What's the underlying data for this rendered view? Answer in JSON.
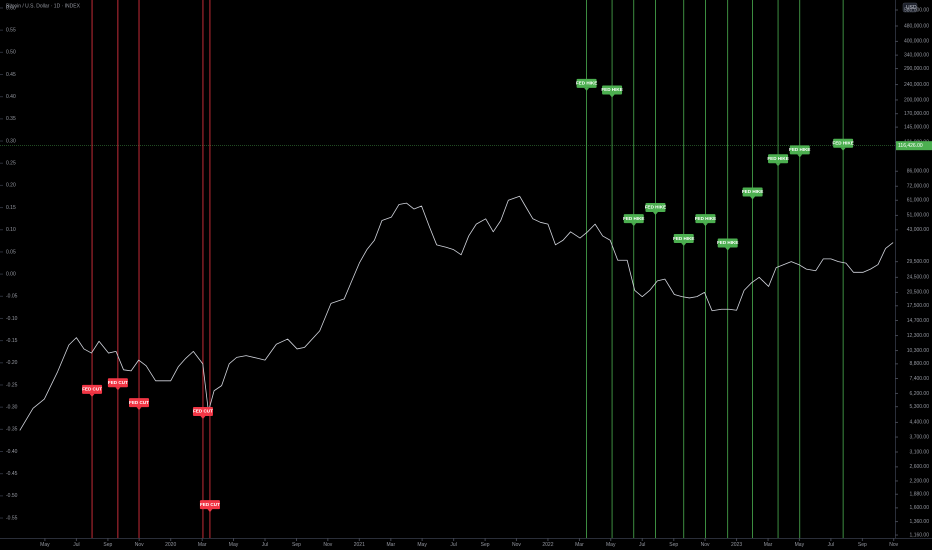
{
  "chart_data": {
    "type": "line",
    "title": "Bitcoin / U.S. Dollar · 1D · INDEX",
    "currency": "USD",
    "background": "#000000",
    "grid": false,
    "xlim": [
      2019.095,
      2023.84
    ],
    "xticks": [
      {
        "value": 2019.333,
        "label": "May"
      },
      {
        "value": 2019.5,
        "label": "Jul"
      },
      {
        "value": 2019.667,
        "label": "Sep"
      },
      {
        "value": 2019.833,
        "label": "Nov"
      },
      {
        "value": 2020,
        "label": "2020"
      },
      {
        "value": 2020.167,
        "label": "Mar"
      },
      {
        "value": 2020.333,
        "label": "May"
      },
      {
        "value": 2020.5,
        "label": "Jul"
      },
      {
        "value": 2020.667,
        "label": "Sep"
      },
      {
        "value": 2020.833,
        "label": "Nov"
      },
      {
        "value": 2021,
        "label": "2021"
      },
      {
        "value": 2021.167,
        "label": "Mar"
      },
      {
        "value": 2021.333,
        "label": "May"
      },
      {
        "value": 2021.5,
        "label": "Jul"
      },
      {
        "value": 2021.667,
        "label": "Sep"
      },
      {
        "value": 2021.833,
        "label": "Nov"
      },
      {
        "value": 2022,
        "label": "2022"
      },
      {
        "value": 2022.167,
        "label": "Mar"
      },
      {
        "value": 2022.333,
        "label": "May"
      },
      {
        "value": 2022.5,
        "label": "Jul"
      },
      {
        "value": 2022.667,
        "label": "Sep"
      },
      {
        "value": 2022.833,
        "label": "Nov"
      },
      {
        "value": 2023,
        "label": "2023"
      },
      {
        "value": 2023.167,
        "label": "Mar"
      },
      {
        "value": 2023.333,
        "label": "May"
      },
      {
        "value": 2023.5,
        "label": "Jul"
      },
      {
        "value": 2023.667,
        "label": "Sep"
      },
      {
        "value": 2023.833,
        "label": "Nov"
      }
    ],
    "ylim": [
      -0.595,
      0.618
    ],
    "yticks": [
      {
        "value": 0.6,
        "label": "0.60"
      },
      0.55,
      {
        "value": 0.5,
        "label": "0.50"
      },
      0.45,
      {
        "value": 0.4,
        "label": "0.40"
      },
      0.35,
      {
        "value": 0.3,
        "label": "0.30"
      },
      0.25,
      {
        "value": 0.2,
        "label": "0.20"
      },
      0.15,
      {
        "value": 0.1,
        "label": "0.10"
      },
      0.05,
      {
        "value": 0,
        "label": "0.00"
      },
      -0.05,
      {
        "value": -0.1,
        "label": "-0.10"
      },
      -0.15,
      {
        "value": -0.2,
        "label": "-0.20"
      },
      -0.25,
      {
        "value": -0.3,
        "label": "-0.30"
      },
      -0.35,
      {
        "value": -0.4,
        "label": "-0.40"
      },
      -0.45,
      {
        "value": -0.5,
        "label": "-0.50"
      },
      -0.55
    ],
    "y2log": true,
    "y2lim": [
      1120,
      653000
    ],
    "y2ticks": [
      {
        "value": 580000,
        "label": "580,000.00"
      },
      {
        "value": 480000,
        "label": "480,000.00"
      },
      {
        "value": 400000,
        "label": "400,000.00"
      },
      {
        "value": 340000,
        "label": "340,000.00"
      },
      {
        "value": 290000,
        "label": "290,000.00"
      },
      {
        "value": 240000,
        "label": "240,000.00"
      },
      {
        "value": 200000,
        "label": "200,000.00"
      },
      {
        "value": 170000,
        "label": "170,000.00"
      },
      {
        "value": 145000,
        "label": "145,000.00"
      },
      {
        "value": 121000,
        "label": "121,000.00"
      },
      {
        "value": 86000,
        "label": "86,000.00"
      },
      {
        "value": 72000,
        "label": "72,000.00"
      },
      {
        "value": 61000,
        "label": "61,000.00"
      },
      {
        "value": 51000,
        "label": "51,000.00"
      },
      {
        "value": 43000,
        "label": "43,000.00"
      },
      {
        "value": 29500,
        "label": "29,500.00"
      },
      {
        "value": 24500,
        "label": "24,500.00"
      },
      {
        "value": 20500,
        "label": "20,500.00"
      },
      {
        "value": 17500,
        "label": "17,500.00"
      },
      {
        "value": 14700,
        "label": "14,700.00"
      },
      {
        "value": 12300,
        "label": "12,300.00"
      },
      {
        "value": 10300,
        "label": "10,300.00"
      },
      {
        "value": 8800,
        "label": "8,800.00"
      },
      {
        "value": 7400,
        "label": "7,400.00"
      },
      {
        "value": 6200,
        "label": "6,200.00"
      },
      {
        "value": 5300,
        "label": "5,300.00"
      },
      {
        "value": 4400,
        "label": "4,400.00"
      },
      {
        "value": 3700,
        "label": "3,700.00"
      },
      {
        "value": 3100,
        "label": "3,100.00"
      },
      {
        "value": 2600,
        "label": "2,600.00"
      },
      {
        "value": 2200,
        "label": "2,200.00"
      },
      {
        "value": 1880,
        "label": "1,880.00"
      },
      {
        "value": 1600,
        "label": "1,600.00"
      },
      {
        "value": 1360,
        "label": "1,360.00"
      },
      {
        "value": 1160,
        "label": "1,160.00"
      }
    ],
    "last_price": {
      "value": 116426,
      "label": "116,426.00",
      "color": "#4caf50"
    },
    "series": [
      {
        "axis": "y2",
        "color": "#d1d4dc",
        "x": [
          2019.2,
          2019.27,
          2019.33,
          2019.4,
          2019.46,
          2019.5,
          2019.54,
          2019.58,
          2019.62,
          2019.67,
          2019.71,
          2019.75,
          2019.79,
          2019.83,
          2019.87,
          2019.92,
          2019.96,
          2020.0,
          2020.04,
          2020.08,
          2020.12,
          2020.17,
          2020.2,
          2020.23,
          2020.27,
          2020.31,
          2020.35,
          2020.4,
          2020.46,
          2020.5,
          2020.56,
          2020.62,
          2020.67,
          2020.71,
          2020.79,
          2020.85,
          2020.92,
          2020.96,
          2021.0,
          2021.04,
          2021.08,
          2021.12,
          2021.17,
          2021.21,
          2021.25,
          2021.29,
          2021.33,
          2021.37,
          2021.41,
          2021.46,
          2021.5,
          2021.54,
          2021.58,
          2021.62,
          2021.67,
          2021.71,
          2021.75,
          2021.79,
          2021.85,
          2021.88,
          2021.92,
          2021.96,
          2022.0,
          2022.04,
          2022.08,
          2022.12,
          2022.17,
          2022.21,
          2022.25,
          2022.29,
          2022.33,
          2022.37,
          2022.42,
          2022.46,
          2022.5,
          2022.54,
          2022.58,
          2022.62,
          2022.67,
          2022.71,
          2022.75,
          2022.79,
          2022.83,
          2022.87,
          2022.92,
          2022.96,
          2023.0,
          2023.04,
          2023.08,
          2023.12,
          2023.17,
          2023.21,
          2023.25,
          2023.29,
          2023.33,
          2023.37,
          2023.42,
          2023.46,
          2023.5,
          2023.54,
          2023.58,
          2023.62,
          2023.67,
          2023.71,
          2023.75,
          2023.79,
          2023.83
        ],
        "values": [
          4000,
          5200,
          5800,
          8000,
          11000,
          12000,
          10500,
          10000,
          11500,
          10000,
          10200,
          8200,
          8100,
          9200,
          8600,
          7200,
          7200,
          7200,
          8500,
          9400,
          10200,
          8800,
          5000,
          6400,
          6800,
          8800,
          9500,
          9700,
          9400,
          9200,
          11100,
          11800,
          10500,
          10700,
          13000,
          18000,
          19000,
          23500,
          29000,
          34000,
          38000,
          48000,
          50000,
          58000,
          59000,
          55000,
          57000,
          45000,
          36000,
          35000,
          34000,
          32000,
          40000,
          46000,
          49000,
          42000,
          48000,
          61000,
          64000,
          57000,
          49000,
          47000,
          46000,
          36000,
          38000,
          42000,
          39000,
          42000,
          46000,
          40000,
          38000,
          30000,
          30000,
          21000,
          19500,
          21000,
          23500,
          24000,
          20000,
          19500,
          19200,
          19500,
          20500,
          16500,
          16800,
          16800,
          16600,
          21000,
          23000,
          24500,
          22000,
          27500,
          28500,
          29500,
          28500,
          27000,
          26500,
          30500,
          30500,
          29500,
          29000,
          26000,
          26000,
          27000,
          28500,
          34500,
          37000
        ]
      }
    ],
    "events": [
      {
        "x": 2019.583,
        "label": "FED CUT",
        "value": -0.27,
        "color": "#f23645"
      },
      {
        "x": 2019.72,
        "label": "FED CUT",
        "value": -0.255,
        "color": "#f23645"
      },
      {
        "x": 2019.832,
        "label": "FED CUT",
        "value": -0.3,
        "color": "#f23645"
      },
      {
        "x": 2020.171,
        "label": "FED CUT",
        "value": -0.32,
        "color": "#f23645"
      },
      {
        "x": 2020.208,
        "label": "FED CUT",
        "value": -0.53,
        "color": "#f23645"
      },
      {
        "x": 2022.205,
        "label": "FED HIKE",
        "value": 0.42,
        "color": "#4caf50"
      },
      {
        "x": 2022.34,
        "label": "FED HIKE",
        "value": 0.405,
        "color": "#4caf50"
      },
      {
        "x": 2022.455,
        "label": "FED HIKE",
        "value": 0.115,
        "color": "#4caf50"
      },
      {
        "x": 2022.57,
        "label": "FED HIKE",
        "value": 0.14,
        "color": "#4caf50"
      },
      {
        "x": 2022.72,
        "label": "FED HIKE",
        "value": 0.07,
        "color": "#4caf50"
      },
      {
        "x": 2022.835,
        "label": "FED HIKE",
        "value": 0.115,
        "color": "#4caf50"
      },
      {
        "x": 2022.953,
        "label": "FED HIKE",
        "value": 0.06,
        "color": "#4caf50"
      },
      {
        "x": 2023.085,
        "label": "FED HIKE",
        "value": 0.175,
        "color": "#4caf50"
      },
      {
        "x": 2023.22,
        "label": "FED HIKE",
        "value": 0.25,
        "color": "#4caf50"
      },
      {
        "x": 2023.335,
        "label": "FED HIKE",
        "value": 0.27,
        "color": "#4caf50"
      },
      {
        "x": 2023.565,
        "label": "FED HIKE",
        "value": 0.285,
        "color": "#4caf50"
      }
    ]
  }
}
